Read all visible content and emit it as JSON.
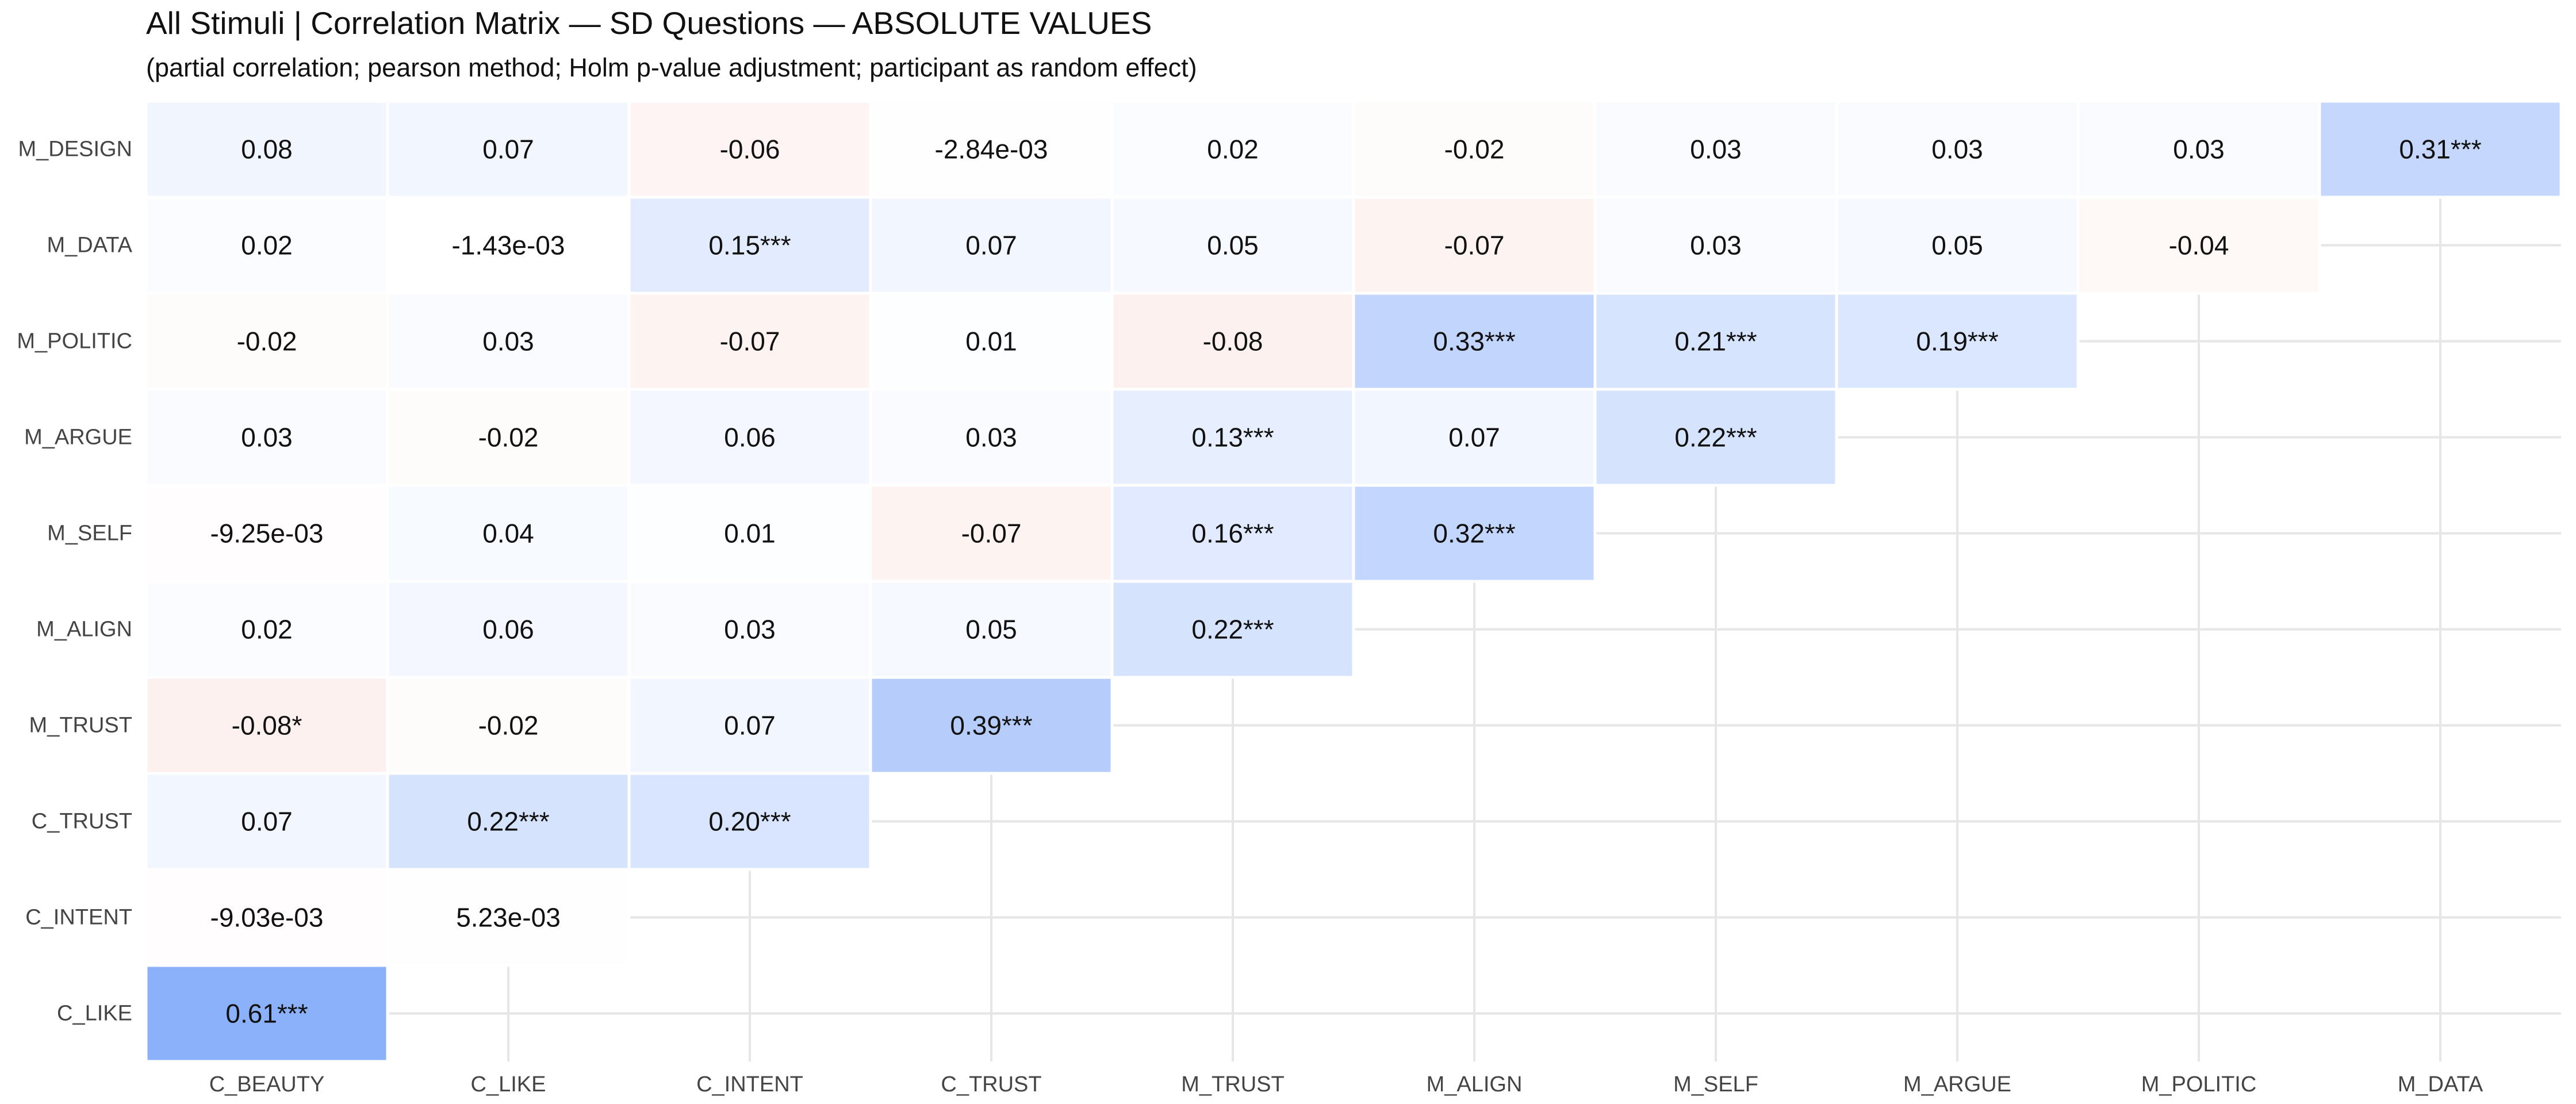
{
  "chart_data": {
    "type": "heatmap",
    "title": "All Stimuli | Correlation Matrix — SD Questions — ABSOLUTE VALUES",
    "subtitle": "(partial correlation; pearson method; Holm p-value adjustment; participant as random effect)",
    "x_categories": [
      "C_BEAUTY",
      "C_LIKE",
      "C_INTENT",
      "C_TRUST",
      "M_TRUST",
      "M_ALIGN",
      "M_SELF",
      "M_ARGUE",
      "M_POLITIC",
      "M_DATA"
    ],
    "y_categories": [
      "M_DESIGN",
      "M_DATA",
      "M_POLITIC",
      "M_ARGUE",
      "M_SELF",
      "M_ALIGN",
      "M_TRUST",
      "C_TRUST",
      "C_INTENT",
      "C_LIKE"
    ],
    "cells": [
      {
        "x": "C_BEAUTY",
        "y": "M_DESIGN",
        "value": 0.08,
        "label": "0.08"
      },
      {
        "x": "C_LIKE",
        "y": "M_DESIGN",
        "value": 0.07,
        "label": "0.07"
      },
      {
        "x": "C_INTENT",
        "y": "M_DESIGN",
        "value": -0.06,
        "label": "-0.06"
      },
      {
        "x": "C_TRUST",
        "y": "M_DESIGN",
        "value": -0.00284,
        "label": "-2.84e-03"
      },
      {
        "x": "M_TRUST",
        "y": "M_DESIGN",
        "value": 0.02,
        "label": "0.02"
      },
      {
        "x": "M_ALIGN",
        "y": "M_DESIGN",
        "value": -0.02,
        "label": "-0.02"
      },
      {
        "x": "M_SELF",
        "y": "M_DESIGN",
        "value": 0.03,
        "label": "0.03"
      },
      {
        "x": "M_ARGUE",
        "y": "M_DESIGN",
        "value": 0.03,
        "label": "0.03"
      },
      {
        "x": "M_POLITIC",
        "y": "M_DESIGN",
        "value": 0.03,
        "label": "0.03"
      },
      {
        "x": "M_DATA",
        "y": "M_DESIGN",
        "value": 0.31,
        "label": "0.31***"
      },
      {
        "x": "C_BEAUTY",
        "y": "M_DATA",
        "value": 0.02,
        "label": "0.02"
      },
      {
        "x": "C_LIKE",
        "y": "M_DATA",
        "value": -0.00143,
        "label": "-1.43e-03"
      },
      {
        "x": "C_INTENT",
        "y": "M_DATA",
        "value": 0.15,
        "label": "0.15***"
      },
      {
        "x": "C_TRUST",
        "y": "M_DATA",
        "value": 0.07,
        "label": "0.07"
      },
      {
        "x": "M_TRUST",
        "y": "M_DATA",
        "value": 0.05,
        "label": "0.05"
      },
      {
        "x": "M_ALIGN",
        "y": "M_DATA",
        "value": -0.07,
        "label": "-0.07"
      },
      {
        "x": "M_SELF",
        "y": "M_DATA",
        "value": 0.03,
        "label": "0.03"
      },
      {
        "x": "M_ARGUE",
        "y": "M_DATA",
        "value": 0.05,
        "label": "0.05"
      },
      {
        "x": "M_POLITIC",
        "y": "M_DATA",
        "value": -0.04,
        "label": "-0.04"
      },
      {
        "x": "C_BEAUTY",
        "y": "M_POLITIC",
        "value": -0.02,
        "label": "-0.02"
      },
      {
        "x": "C_LIKE",
        "y": "M_POLITIC",
        "value": 0.03,
        "label": "0.03"
      },
      {
        "x": "C_INTENT",
        "y": "M_POLITIC",
        "value": -0.07,
        "label": "-0.07"
      },
      {
        "x": "C_TRUST",
        "y": "M_POLITIC",
        "value": 0.01,
        "label": "0.01"
      },
      {
        "x": "M_TRUST",
        "y": "M_POLITIC",
        "value": -0.08,
        "label": "-0.08"
      },
      {
        "x": "M_ALIGN",
        "y": "M_POLITIC",
        "value": 0.33,
        "label": "0.33***"
      },
      {
        "x": "M_SELF",
        "y": "M_POLITIC",
        "value": 0.21,
        "label": "0.21***"
      },
      {
        "x": "M_ARGUE",
        "y": "M_POLITIC",
        "value": 0.19,
        "label": "0.19***"
      },
      {
        "x": "C_BEAUTY",
        "y": "M_ARGUE",
        "value": 0.03,
        "label": "0.03"
      },
      {
        "x": "C_LIKE",
        "y": "M_ARGUE",
        "value": -0.02,
        "label": "-0.02"
      },
      {
        "x": "C_INTENT",
        "y": "M_ARGUE",
        "value": 0.06,
        "label": "0.06"
      },
      {
        "x": "C_TRUST",
        "y": "M_ARGUE",
        "value": 0.03,
        "label": "0.03"
      },
      {
        "x": "M_TRUST",
        "y": "M_ARGUE",
        "value": 0.13,
        "label": "0.13***"
      },
      {
        "x": "M_ALIGN",
        "y": "M_ARGUE",
        "value": 0.07,
        "label": "0.07"
      },
      {
        "x": "M_SELF",
        "y": "M_ARGUE",
        "value": 0.22,
        "label": "0.22***"
      },
      {
        "x": "C_BEAUTY",
        "y": "M_SELF",
        "value": -0.00925,
        "label": "-9.25e-03"
      },
      {
        "x": "C_LIKE",
        "y": "M_SELF",
        "value": 0.04,
        "label": "0.04"
      },
      {
        "x": "C_INTENT",
        "y": "M_SELF",
        "value": 0.01,
        "label": "0.01"
      },
      {
        "x": "C_TRUST",
        "y": "M_SELF",
        "value": -0.07,
        "label": "-0.07"
      },
      {
        "x": "M_TRUST",
        "y": "M_SELF",
        "value": 0.16,
        "label": "0.16***"
      },
      {
        "x": "M_ALIGN",
        "y": "M_SELF",
        "value": 0.32,
        "label": "0.32***"
      },
      {
        "x": "C_BEAUTY",
        "y": "M_ALIGN",
        "value": 0.02,
        "label": "0.02"
      },
      {
        "x": "C_LIKE",
        "y": "M_ALIGN",
        "value": 0.06,
        "label": "0.06"
      },
      {
        "x": "C_INTENT",
        "y": "M_ALIGN",
        "value": 0.03,
        "label": "0.03"
      },
      {
        "x": "C_TRUST",
        "y": "M_ALIGN",
        "value": 0.05,
        "label": "0.05"
      },
      {
        "x": "M_TRUST",
        "y": "M_ALIGN",
        "value": 0.22,
        "label": "0.22***"
      },
      {
        "x": "C_BEAUTY",
        "y": "M_TRUST",
        "value": -0.08,
        "label": "-0.08*"
      },
      {
        "x": "C_LIKE",
        "y": "M_TRUST",
        "value": -0.02,
        "label": "-0.02"
      },
      {
        "x": "C_INTENT",
        "y": "M_TRUST",
        "value": 0.07,
        "label": "0.07"
      },
      {
        "x": "C_TRUST",
        "y": "M_TRUST",
        "value": 0.39,
        "label": "0.39***"
      },
      {
        "x": "C_BEAUTY",
        "y": "C_TRUST",
        "value": 0.07,
        "label": "0.07"
      },
      {
        "x": "C_LIKE",
        "y": "C_TRUST",
        "value": 0.22,
        "label": "0.22***"
      },
      {
        "x": "C_INTENT",
        "y": "C_TRUST",
        "value": 0.2,
        "label": "0.20***"
      },
      {
        "x": "C_BEAUTY",
        "y": "C_INTENT",
        "value": -0.00903,
        "label": "-9.03e-03"
      },
      {
        "x": "C_LIKE",
        "y": "C_INTENT",
        "value": 0.00523,
        "label": "5.23e-03"
      },
      {
        "x": "C_BEAUTY",
        "y": "C_LIKE",
        "value": 0.61,
        "label": "0.61***"
      }
    ],
    "color_scale": {
      "negative": "#e8654f",
      "zero": "#ffffff",
      "positive": "#5b8ff9"
    },
    "grid": true,
    "legend": "none"
  }
}
